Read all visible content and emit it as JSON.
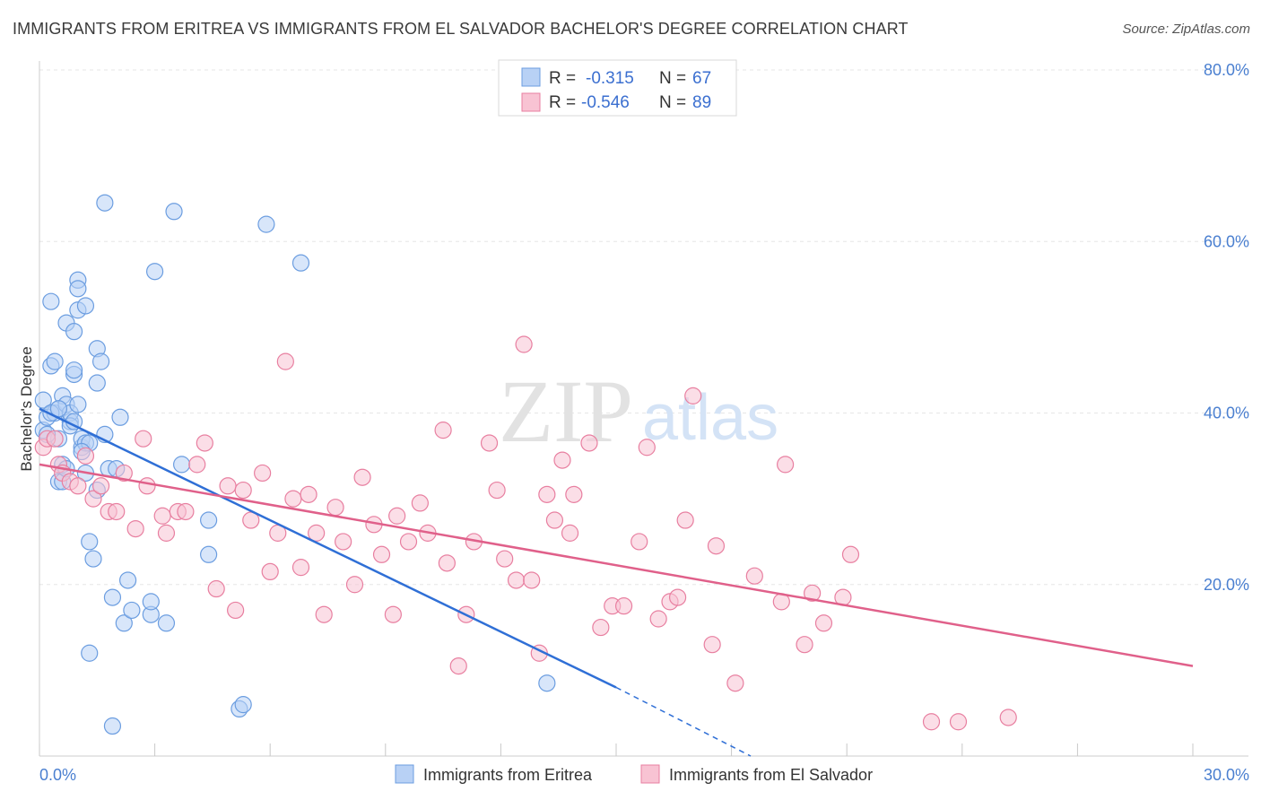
{
  "title": "IMMIGRANTS FROM ERITREA VS IMMIGRANTS FROM EL SALVADOR BACHELOR'S DEGREE CORRELATION CHART",
  "source": "Source: ZipAtlas.com",
  "watermark": {
    "zip": "ZIP",
    "atlas": "atlas"
  },
  "legend_top": [
    {
      "r_label": "R =",
      "r_value": "-0.315",
      "n_label": "N =",
      "n_value": "67"
    },
    {
      "r_label": "R =",
      "r_value": "-0.546",
      "n_label": "N =",
      "n_value": "89"
    }
  ],
  "chart_data": {
    "type": "scatter",
    "title": "IMMIGRANTS FROM ERITREA VS IMMIGRANTS FROM EL SALVADOR BACHELOR'S DEGREE CORRELATION CHART",
    "xlabel": "",
    "ylabel": "Bachelor's Degree",
    "xlim": [
      0,
      30
    ],
    "ylim": [
      0,
      80
    ],
    "x_tick_labels": [
      "0.0%",
      "30.0%"
    ],
    "y_tick_labels": [
      "20.0%",
      "40.0%",
      "60.0%",
      "80.0%"
    ],
    "y_tick_values": [
      20,
      40,
      60,
      80
    ],
    "grid": true,
    "legend_position": "top-center",
    "series": [
      {
        "name": "Immigrants from Eritrea",
        "color": "#6b9de0",
        "fill": "#b8d1f5",
        "points": [
          [
            0.1,
            41.5
          ],
          [
            0.1,
            38
          ],
          [
            0.2,
            39.5
          ],
          [
            0.3,
            45.5
          ],
          [
            0.3,
            53
          ],
          [
            0.4,
            46
          ],
          [
            0.4,
            40
          ],
          [
            0.5,
            37
          ],
          [
            0.5,
            40.5
          ],
          [
            0.5,
            32
          ],
          [
            0.6,
            42
          ],
          [
            0.6,
            34
          ],
          [
            0.7,
            50.5
          ],
          [
            0.7,
            41
          ],
          [
            0.8,
            39
          ],
          [
            0.8,
            40
          ],
          [
            0.9,
            44.5
          ],
          [
            0.9,
            49.5
          ],
          [
            0.9,
            45
          ],
          [
            1.0,
            55.5
          ],
          [
            1.0,
            54.5
          ],
          [
            1.0,
            52
          ],
          [
            1.1,
            36
          ],
          [
            1.1,
            37
          ],
          [
            1.2,
            52.5
          ],
          [
            1.2,
            36.5
          ],
          [
            1.2,
            33
          ],
          [
            1.3,
            36.5
          ],
          [
            1.3,
            25
          ],
          [
            1.4,
            23
          ],
          [
            1.5,
            47.5
          ],
          [
            1.5,
            43.5
          ],
          [
            1.5,
            31
          ],
          [
            1.6,
            46
          ],
          [
            1.7,
            64.5
          ],
          [
            1.7,
            37.5
          ],
          [
            1.8,
            33.5
          ],
          [
            1.9,
            18.5
          ],
          [
            2.0,
            33.5
          ],
          [
            2.1,
            39.5
          ],
          [
            2.2,
            15.5
          ],
          [
            2.3,
            20.5
          ],
          [
            2.4,
            17
          ],
          [
            2.9,
            16.5
          ],
          [
            2.9,
            18
          ],
          [
            3.0,
            56.5
          ],
          [
            3.3,
            15.5
          ],
          [
            3.5,
            63.5
          ],
          [
            3.7,
            34
          ],
          [
            4.4,
            27.5
          ],
          [
            4.4,
            23.5
          ],
          [
            5.2,
            5.5
          ],
          [
            5.3,
            6
          ],
          [
            5.9,
            62
          ],
          [
            6.8,
            57.5
          ],
          [
            1.3,
            12
          ],
          [
            1.9,
            3.5
          ],
          [
            13.2,
            8.5
          ],
          [
            0.2,
            37.5
          ],
          [
            0.3,
            40
          ],
          [
            0.5,
            40.5
          ],
          [
            0.6,
            32
          ],
          [
            0.7,
            33.5
          ],
          [
            0.8,
            38.5
          ],
          [
            0.9,
            39
          ],
          [
            1.0,
            41
          ],
          [
            1.1,
            35.5
          ]
        ]
      },
      {
        "name": "Immigrants from El Salvador",
        "color": "#e87fa0",
        "fill": "#f8c3d3",
        "points": [
          [
            0.1,
            36
          ],
          [
            0.2,
            37
          ],
          [
            0.4,
            37
          ],
          [
            0.5,
            34
          ],
          [
            0.6,
            33
          ],
          [
            0.8,
            32
          ],
          [
            1.0,
            31.5
          ],
          [
            1.2,
            35
          ],
          [
            1.4,
            30
          ],
          [
            1.6,
            31.5
          ],
          [
            1.8,
            28.5
          ],
          [
            2.0,
            28.5
          ],
          [
            2.2,
            33
          ],
          [
            2.5,
            26.5
          ],
          [
            2.7,
            37
          ],
          [
            2.8,
            31.5
          ],
          [
            3.2,
            28
          ],
          [
            3.3,
            26
          ],
          [
            3.6,
            28.5
          ],
          [
            3.8,
            28.5
          ],
          [
            4.1,
            34
          ],
          [
            4.3,
            36.5
          ],
          [
            4.6,
            19.5
          ],
          [
            4.9,
            31.5
          ],
          [
            5.1,
            17
          ],
          [
            5.3,
            31
          ],
          [
            5.5,
            27.5
          ],
          [
            5.8,
            33
          ],
          [
            6.0,
            21.5
          ],
          [
            6.2,
            26
          ],
          [
            6.4,
            46
          ],
          [
            6.6,
            30
          ],
          [
            6.8,
            22
          ],
          [
            7.0,
            30.5
          ],
          [
            7.2,
            26
          ],
          [
            7.4,
            16.5
          ],
          [
            7.7,
            29
          ],
          [
            7.9,
            25
          ],
          [
            8.2,
            20
          ],
          [
            8.4,
            32.5
          ],
          [
            8.7,
            27
          ],
          [
            8.9,
            23.5
          ],
          [
            9.2,
            16.5
          ],
          [
            9.3,
            28
          ],
          [
            9.6,
            25
          ],
          [
            9.9,
            29.5
          ],
          [
            10.1,
            26
          ],
          [
            10.5,
            38
          ],
          [
            10.6,
            22.5
          ],
          [
            10.9,
            10.5
          ],
          [
            11.1,
            16.5
          ],
          [
            11.3,
            25
          ],
          [
            11.7,
            36.5
          ],
          [
            11.9,
            31
          ],
          [
            12.1,
            23
          ],
          [
            12.4,
            20.5
          ],
          [
            12.6,
            48
          ],
          [
            12.8,
            20.5
          ],
          [
            13.0,
            12
          ],
          [
            13.2,
            30.5
          ],
          [
            13.4,
            27.5
          ],
          [
            13.6,
            34.5
          ],
          [
            13.8,
            26
          ],
          [
            13.9,
            30.5
          ],
          [
            14.3,
            36.5
          ],
          [
            14.6,
            15
          ],
          [
            14.9,
            17.5
          ],
          [
            15.2,
            17.5
          ],
          [
            15.6,
            25
          ],
          [
            15.8,
            36
          ],
          [
            16.1,
            16
          ],
          [
            16.4,
            18
          ],
          [
            16.6,
            18.5
          ],
          [
            16.8,
            27.5
          ],
          [
            17.0,
            42
          ],
          [
            17.5,
            13
          ],
          [
            17.6,
            24.5
          ],
          [
            18.1,
            8.5
          ],
          [
            18.6,
            21
          ],
          [
            19.3,
            18
          ],
          [
            19.4,
            34
          ],
          [
            19.9,
            13
          ],
          [
            20.1,
            19
          ],
          [
            20.4,
            15.5
          ],
          [
            20.9,
            18.5
          ],
          [
            21.1,
            23.5
          ],
          [
            23.2,
            4
          ],
          [
            23.9,
            4
          ],
          [
            25.2,
            4.5
          ]
        ]
      }
    ],
    "trend_lines": [
      {
        "series": "Immigrants from Eritrea",
        "x": [
          0,
          15.0
        ],
        "y": [
          40.5,
          8
        ],
        "dashed_to": [
          18.5,
          0
        ]
      },
      {
        "series": "Immigrants from El Salvador",
        "x": [
          0,
          30
        ],
        "y": [
          34,
          10.5
        ]
      }
    ]
  },
  "bottom_legend": [
    "Immigrants from Eritrea",
    "Immigrants from El Salvador"
  ]
}
